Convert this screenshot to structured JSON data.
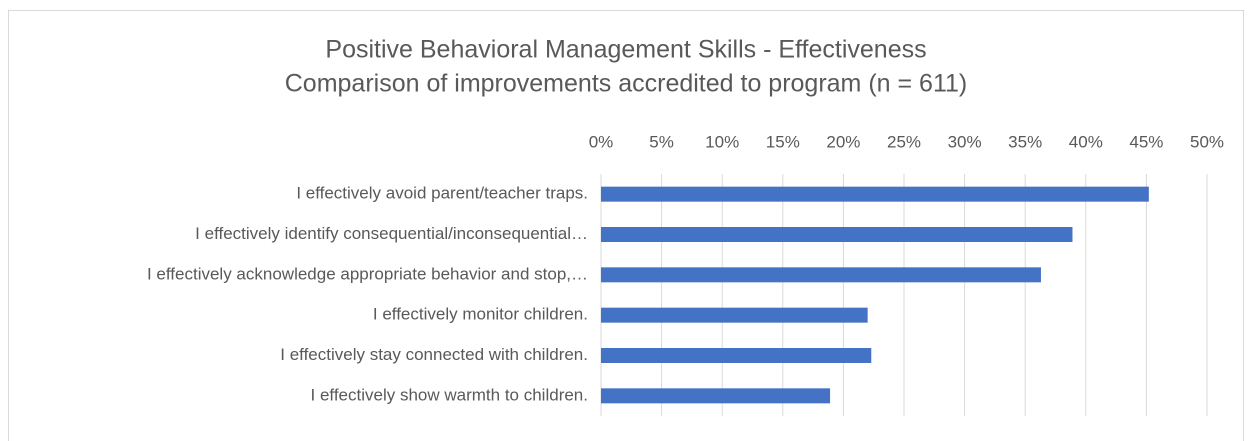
{
  "chart_data": {
    "type": "bar",
    "orientation": "horizontal",
    "title": "Positive Behavioral Management Skills - Effectiveness",
    "subtitle": "Comparison of improvements accredited to program (n = 611)",
    "categories": [
      "I effectively avoid parent/teacher traps.",
      "I effectively identify consequential/inconsequential…",
      "I effectively acknowledge appropriate behavior and stop,…",
      "I effectively monitor children.",
      "I effectively stay connected with children.",
      "I effectively show warmth to children."
    ],
    "values": [
      45.2,
      38.9,
      36.3,
      22.0,
      22.3,
      18.9
    ],
    "color": "#4472c4",
    "xlim": [
      0,
      50
    ],
    "xticks": [
      {
        "value": 0,
        "label": "0%"
      },
      {
        "value": 5,
        "label": "5%"
      },
      {
        "value": 10,
        "label": "10%"
      },
      {
        "value": 15,
        "label": "15%"
      },
      {
        "value": 20,
        "label": "20%"
      },
      {
        "value": 25,
        "label": "25%"
      },
      {
        "value": 30,
        "label": "30%"
      },
      {
        "value": 35,
        "label": "35%"
      },
      {
        "value": 40,
        "label": "40%"
      },
      {
        "value": 45,
        "label": "45%"
      },
      {
        "value": 50,
        "label": "50%"
      }
    ],
    "grid": true
  }
}
